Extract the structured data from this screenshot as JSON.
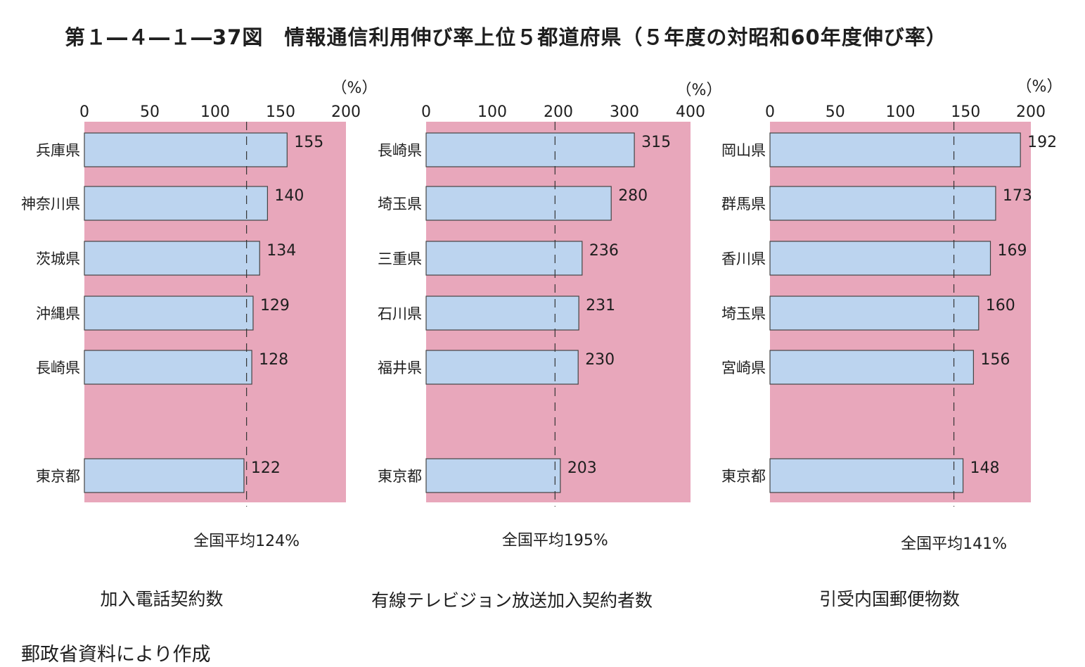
{
  "title": "第１―４―１―37図　情報通信利用伸び率上位５都道府県（５年度の対昭和60年度伸び率）",
  "source": "郵政省資料により作成",
  "colors": {
    "panel": "#e8a7bb",
    "bar": "#bcd4ef",
    "bar_stroke": "#444444"
  },
  "chart_data": [
    {
      "type": "bar",
      "orientation": "horizontal",
      "title": "加入電話契約数",
      "unit": "（%）",
      "xlim": [
        0,
        200
      ],
      "ticks": [
        0,
        50,
        100,
        150,
        200
      ],
      "categories": [
        "兵庫県",
        "神奈川県",
        "茨城県",
        "沖縄県",
        "長崎県",
        "東京都"
      ],
      "values": [
        155,
        140,
        134,
        129,
        128,
        122
      ],
      "average": {
        "value": 124,
        "label": "全国平均124%"
      }
    },
    {
      "type": "bar",
      "orientation": "horizontal",
      "title": "有線テレビジョン放送加入契約者数",
      "unit": "（%）",
      "xlim": [
        0,
        400
      ],
      "ticks": [
        0,
        100,
        200,
        300,
        400
      ],
      "categories": [
        "長崎県",
        "埼玉県",
        "三重県",
        "石川県",
        "福井県",
        "東京都"
      ],
      "values": [
        315,
        280,
        236,
        231,
        230,
        203
      ],
      "average": {
        "value": 195,
        "label": "全国平均195%"
      }
    },
    {
      "type": "bar",
      "orientation": "horizontal",
      "title": "引受内国郵便物数",
      "unit": "（%）",
      "xlim": [
        0,
        200
      ],
      "ticks": [
        0,
        50,
        100,
        150,
        200
      ],
      "categories": [
        "岡山県",
        "群馬県",
        "香川県",
        "埼玉県",
        "宮崎県",
        "東京都"
      ],
      "values": [
        192,
        173,
        169,
        160,
        156,
        148
      ],
      "average": {
        "value": 141,
        "label": "全国平均141%"
      }
    }
  ]
}
